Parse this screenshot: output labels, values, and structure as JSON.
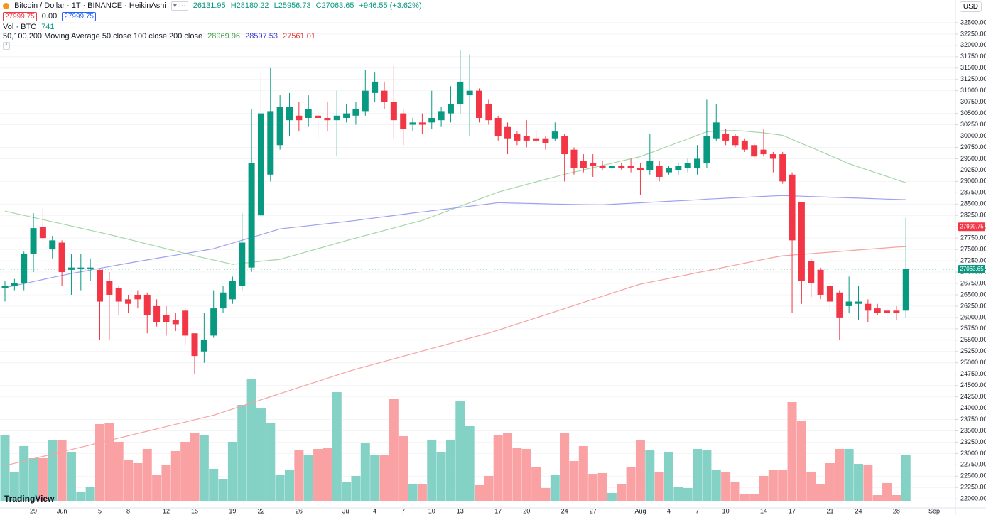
{
  "chart_data": {
    "type": "candlestick",
    "header": {
      "symbol": "Bitcoin / Dollar · 1T · BINANCE · HeikinAshi",
      "open": "26131.95",
      "high": "H28180.22",
      "low": "L25956.73",
      "close": "C27063.65",
      "change": "+946.55 (+3.62%)",
      "bid": "27999.75",
      "spread": "0.00",
      "ask": "27999.75"
    },
    "volume_legend": {
      "label": "Vol · BTC",
      "value": "741"
    },
    "ma_legend": {
      "label": "50,100,200 Moving Average 50 close 100 close 200 close",
      "values": [
        "28969.96",
        "28597.53",
        "27561.01"
      ]
    },
    "currency": "USD",
    "brand": "TradingView",
    "axis_end_label": "Sep",
    "categories": [
      null,
      null,
      null,
      "29",
      null,
      null,
      "Jun",
      null,
      null,
      null,
      "5",
      null,
      null,
      "8",
      null,
      null,
      null,
      "12",
      null,
      null,
      "15",
      null,
      null,
      null,
      "19",
      null,
      null,
      "22",
      null,
      null,
      null,
      "26",
      null,
      null,
      null,
      null,
      "Jul",
      null,
      null,
      "4",
      null,
      null,
      "7",
      null,
      null,
      "10",
      null,
      null,
      "13",
      null,
      null,
      null,
      "17",
      null,
      null,
      "20",
      null,
      null,
      null,
      "24",
      null,
      null,
      "27",
      null,
      null,
      null,
      null,
      "Aug",
      null,
      null,
      "4",
      null,
      null,
      "7",
      null,
      null,
      "10",
      null,
      null,
      null,
      "14",
      null,
      null,
      "17",
      null,
      null,
      null,
      "21",
      null,
      null,
      "24",
      null,
      null,
      null,
      "28",
      null
    ],
    "open": [
      26650,
      26700,
      26750,
      27400,
      28000,
      27500,
      27650,
      27050,
      27100,
      27100,
      27050,
      26800,
      26650,
      26400,
      26500,
      26500,
      26250,
      26050,
      25950,
      26150,
      25650,
      25250,
      25600,
      26200,
      26400,
      26700,
      27100,
      28250,
      29150,
      29800,
      30350,
      30450,
      30400,
      30450,
      30400,
      30350,
      30400,
      30450,
      30550,
      30950,
      31000,
      30750,
      30500,
      30250,
      30300,
      30300,
      30350,
      30500,
      30700,
      30900,
      31000,
      30700,
      30400,
      30200,
      30050,
      30000,
      29950,
      29950,
      29950,
      30000,
      29700,
      29450,
      29400,
      29350,
      29300,
      29350,
      29350,
      29300,
      29250,
      29350,
      29200,
      29250,
      29300,
      29300,
      29400,
      29950,
      30050,
      30000,
      29900,
      29800,
      29700,
      29600,
      29600,
      29150,
      28550,
      27250,
      27050,
      26700,
      26550,
      26250,
      26300,
      26300,
      26200,
      26150,
      26150,
      26150
    ],
    "high": [
      26800,
      26850,
      27450,
      28300,
      28400,
      27800,
      27700,
      27400,
      27400,
      27300,
      27050,
      27000,
      26700,
      26500,
      26600,
      26550,
      26400,
      26250,
      26100,
      26200,
      25650,
      26100,
      26600,
      26700,
      26900,
      28300,
      30600,
      31400,
      31500,
      30900,
      30950,
      30750,
      30900,
      30600,
      30750,
      31000,
      30700,
      30750,
      31450,
      31400,
      31200,
      31550,
      30600,
      30400,
      30500,
      31000,
      30650,
      31100,
      31900,
      31800,
      31050,
      30800,
      30450,
      30300,
      30100,
      30350,
      30100,
      30000,
      30300,
      30050,
      29750,
      29600,
      29600,
      29450,
      29400,
      29400,
      29500,
      29400,
      30050,
      29450,
      29350,
      29400,
      29500,
      29800,
      30800,
      30700,
      30150,
      30050,
      29950,
      29850,
      30150,
      29650,
      29650,
      29200,
      28550,
      27300,
      27100,
      26750,
      26600,
      26900,
      26700,
      26400,
      26300,
      26200,
      26250,
      28200
    ],
    "low": [
      26350,
      26600,
      26600,
      27000,
      27700,
      27300,
      26700,
      26500,
      26600,
      26800,
      25500,
      25500,
      26050,
      26100,
      26200,
      25650,
      25800,
      25600,
      25700,
      25400,
      24750,
      25000,
      25550,
      26100,
      26300,
      26600,
      27000,
      28200,
      29000,
      29700,
      30000,
      30100,
      30200,
      29950,
      30100,
      29550,
      30300,
      30250,
      30450,
      30750,
      30600,
      29950,
      29800,
      30100,
      30050,
      30150,
      30200,
      30300,
      30500,
      30000,
      30300,
      30250,
      29900,
      29600,
      29800,
      29750,
      29850,
      29700,
      29900,
      29000,
      29150,
      29200,
      29100,
      29250,
      29250,
      29250,
      29200,
      28700,
      29150,
      29000,
      29150,
      29150,
      29200,
      29150,
      29300,
      29900,
      29800,
      29750,
      29650,
      29500,
      29550,
      29200,
      28950,
      26100,
      26300,
      26450,
      26400,
      26100,
      25500,
      26100,
      25950,
      25900,
      26050,
      26000,
      25950,
      26000
    ],
    "close": [
      26700,
      26750,
      27400,
      27970,
      27750,
      27700,
      27000,
      27100,
      27100,
      27100,
      26350,
      26500,
      26350,
      26300,
      26400,
      26050,
      25900,
      25900,
      25850,
      25600,
      25150,
      25500,
      26200,
      26550,
      26800,
      27650,
      29400,
      30500,
      30550,
      30650,
      30650,
      30350,
      30600,
      30400,
      30350,
      30450,
      30500,
      30600,
      31000,
      31200,
      30750,
      30350,
      30150,
      30300,
      30250,
      30400,
      30550,
      30700,
      31200,
      31000,
      30400,
      30350,
      30000,
      29950,
      29900,
      29900,
      29900,
      29850,
      30100,
      29600,
      29300,
      29300,
      29350,
      29300,
      29350,
      29300,
      29300,
      29250,
      29450,
      29100,
      29300,
      29350,
      29400,
      29500,
      30000,
      30300,
      29900,
      29800,
      29700,
      29550,
      29600,
      29500,
      29000,
      27700,
      26800,
      26750,
      26500,
      26350,
      26000,
      26350,
      26350,
      26150,
      26100,
      26100,
      26100,
      27063.65
    ],
    "volume": [
      1070,
      460,
      886,
      690,
      690,
      978,
      978,
      782,
      138,
      230,
      1242,
      1265,
      955,
      656,
      610,
      840,
      426,
      575,
      805,
      955,
      1093,
      1058,
      518,
      345,
      955,
      1553,
      1967,
      1495,
      1265,
      426,
      506,
      817,
      736,
      840,
      851,
      1760,
      311,
      403,
      932,
      748,
      748,
      1645,
      1047,
      265,
      265,
      989,
      782,
      989,
      1610,
      1208,
      253,
      403,
      1070,
      1093,
      863,
      840,
      552,
      207,
      426,
      1093,
      644,
      886,
      437,
      449,
      127,
      276,
      552,
      989,
      828,
      460,
      782,
      230,
      207,
      840,
      817,
      495,
      460,
      311,
      104,
      104,
      403,
      506,
      506,
      1599,
      1288,
      472,
      276,
      610,
      840,
      840,
      598,
      575,
      92,
      288,
      92,
      741
    ],
    "series": [
      {
        "name": "50 close",
        "color": "#a5d6a7",
        "values": [
          28344,
          28297,
          28250,
          28203,
          28156,
          28109,
          28062,
          28015,
          27968,
          27921,
          27874,
          27828,
          27776,
          27724,
          27672,
          27620,
          27568,
          27516,
          27464,
          27412,
          27359,
          27312,
          27265,
          27218,
          27172,
          27194,
          27216,
          27238,
          27260,
          27281,
          27340,
          27399,
          27458,
          27517,
          27576,
          27635,
          27694,
          27750,
          27806,
          27862,
          27918,
          27974,
          28030,
          28086,
          28140,
          28218,
          28296,
          28374,
          28452,
          28530,
          28608,
          28686,
          28765,
          28821,
          28877,
          28933,
          28989,
          29045,
          29101,
          29156,
          29205,
          29254,
          29303,
          29352,
          29401,
          29450,
          29499,
          29547,
          29625,
          29703,
          29781,
          29859,
          29937,
          30015,
          30094,
          30110,
          30120,
          30120,
          30110,
          30090,
          30070,
          30045,
          30016,
          29927,
          29838,
          29749,
          29660,
          29571,
          29482,
          29390,
          29320,
          29250,
          29180,
          29110,
          29040,
          28970
        ]
      },
      {
        "name": "100 close",
        "color": "#9fa0f0",
        "values": [
          26656,
          26701,
          26746,
          26791,
          26836,
          26881,
          26926,
          26969,
          27007,
          27045,
          27083,
          27121,
          27159,
          27197,
          27234,
          27269,
          27304,
          27339,
          27374,
          27409,
          27444,
          27479,
          27516,
          27578,
          27640,
          27702,
          27764,
          27826,
          27888,
          27953,
          27976,
          27999,
          28022,
          28045,
          28068,
          28091,
          28114,
          28140,
          28167,
          28194,
          28221,
          28248,
          28275,
          28302,
          28328,
          28353,
          28378,
          28403,
          28428,
          28453,
          28478,
          28503,
          28531,
          28525,
          28520,
          28515,
          28510,
          28505,
          28500,
          28495,
          28490,
          28487,
          28485,
          28484,
          28495,
          28506,
          28517,
          28528,
          28539,
          28550,
          28561,
          28572,
          28583,
          28594,
          28609,
          28619,
          28629,
          28639,
          28649,
          28659,
          28669,
          28679,
          28687,
          28680,
          28673,
          28666,
          28659,
          28652,
          28645,
          28638,
          28631,
          28624,
          28617,
          28610,
          28603,
          28597
        ]
      },
      {
        "name": "200 close",
        "color": "#f5a3a0",
        "values": [
          22734,
          22784,
          22835,
          22885,
          22936,
          22986,
          23037,
          23087,
          23138,
          23188,
          23239,
          23289,
          23340,
          23390,
          23441,
          23491,
          23542,
          23592,
          23643,
          23693,
          23744,
          23794,
          23844,
          23912,
          23980,
          24048,
          24116,
          24184,
          24252,
          24320,
          24388,
          24456,
          24524,
          24592,
          24660,
          24728,
          24796,
          24859,
          24916,
          24973,
          25030,
          25087,
          25144,
          25201,
          25258,
          25315,
          25372,
          25429,
          25486,
          25543,
          25600,
          25657,
          25719,
          25787,
          25855,
          25923,
          25991,
          26059,
          26127,
          26195,
          26263,
          26331,
          26399,
          26467,
          26535,
          26603,
          26671,
          26734,
          26776,
          26818,
          26860,
          26902,
          26944,
          26986,
          27028,
          27070,
          27112,
          27154,
          27196,
          27238,
          27280,
          27322,
          27359,
          27375,
          27391,
          27407,
          27423,
          27439,
          27455,
          27471,
          27487,
          27503,
          27519,
          27535,
          27551,
          27561
        ]
      }
    ],
    "up_color": "#089981",
    "down_color": "#f23645",
    "volume_up_color": "#84d1c5",
    "volume_down_color": "#faa1a4",
    "price_line": 27999.75,
    "last_price": 27063.65,
    "ylim": [
      21800,
      33000
    ],
    "yticks": [
      {
        "value": 22000,
        "label": "22000.00"
      },
      {
        "value": 22250,
        "label": "22250.00"
      },
      {
        "value": 22500,
        "label": "22500.00"
      },
      {
        "value": 22750,
        "label": "22750.00"
      },
      {
        "value": 23000,
        "label": "23000.00"
      },
      {
        "value": 23250,
        "label": "23250.00"
      },
      {
        "value": 23500,
        "label": "23500.00"
      },
      {
        "value": 23750,
        "label": "23750.00"
      },
      {
        "value": 24000,
        "label": "24000.00"
      },
      {
        "value": 24250,
        "label": "24250.00"
      },
      {
        "value": 24500,
        "label": "24500.00"
      },
      {
        "value": 24750,
        "label": "24750.00"
      },
      {
        "value": 25000,
        "label": "25000.00"
      },
      {
        "value": 25250,
        "label": "25250.00"
      },
      {
        "value": 25500,
        "label": "25500.00"
      },
      {
        "value": 25750,
        "label": "25750.00"
      },
      {
        "value": 26000,
        "label": "26000.00"
      },
      {
        "value": 26250,
        "label": "26250.00"
      },
      {
        "value": 26500,
        "label": "26500.00"
      },
      {
        "value": 26750,
        "label": "26750.00"
      },
      {
        "value": 27000,
        "label": "27000.00"
      },
      {
        "value": 27250,
        "label": "27250.00"
      },
      {
        "value": 27500,
        "label": "27500.00"
      },
      {
        "value": 27750,
        "label": "27750.00"
      },
      {
        "value": 28000,
        "label": "28000.00"
      },
      {
        "value": 28250,
        "label": "28250.00"
      },
      {
        "value": 28500,
        "label": "28500.00"
      },
      {
        "value": 28750,
        "label": "28750.00"
      },
      {
        "value": 29000,
        "label": "29000.00"
      },
      {
        "value": 29250,
        "label": "29250.00"
      },
      {
        "value": 29500,
        "label": "29500.00"
      },
      {
        "value": 29750,
        "label": "29750.00"
      },
      {
        "value": 30000,
        "label": "30000.00"
      },
      {
        "value": 30250,
        "label": "30250.00"
      },
      {
        "value": 30500,
        "label": "30500.00"
      },
      {
        "value": 30750,
        "label": "30750.00"
      },
      {
        "value": 31000,
        "label": "31000.00"
      },
      {
        "value": 31250,
        "label": "31250.00"
      },
      {
        "value": 31500,
        "label": "31500.00"
      },
      {
        "value": 31750,
        "label": "31750.00"
      },
      {
        "value": 32000,
        "label": "32000.00"
      },
      {
        "value": 32250,
        "label": "32250.00"
      },
      {
        "value": 32500,
        "label": "32500.00"
      }
    ],
    "grid": true
  }
}
